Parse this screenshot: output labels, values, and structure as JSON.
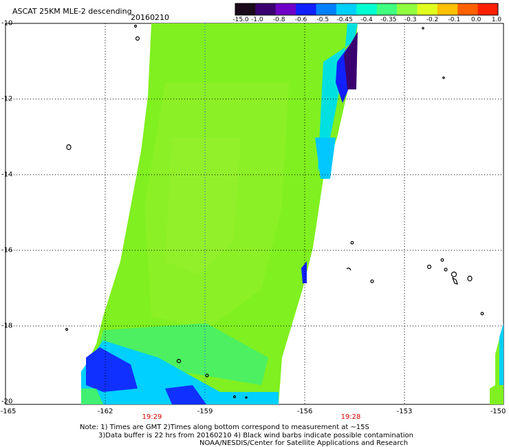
{
  "title": "ASCAT 25KM MLE-2 descending",
  "date": "20160210",
  "colorbar": {
    "labels": [
      "-15.0",
      "-1.0",
      "-0.8",
      "-0.6",
      "-0.5",
      "-0.45",
      "-0.4",
      "-0.35",
      "-0.3",
      "-0.2",
      "-0.1",
      "0.0",
      "1.0"
    ],
    "colors": [
      "#1a0a1a",
      "#3a0070",
      "#7000c8",
      "#1020ff",
      "#0080ff",
      "#00d0ff",
      "#00ffd0",
      "#40ff80",
      "#90ff40",
      "#e0ff20",
      "#ffc000",
      "#ff6000",
      "#ff2000"
    ]
  },
  "axes": {
    "lat_labels": [
      "-10",
      "-12",
      "-14",
      "-16",
      "-18",
      "-20"
    ],
    "lon_labels": [
      "-165",
      "-162",
      "-159",
      "-156",
      "-153",
      "-150"
    ],
    "lat_range": [
      -20,
      -10
    ],
    "lon_range": [
      -165,
      -150
    ]
  },
  "times": [
    "19:29",
    "19:28"
  ],
  "notes": [
    "Note: 1) Times are GMT 2)Times along bottom correspond to measurement at ~15S",
    "3)Data buffer is 22 hrs from 20160210 4) Black wind barbs indicate possible contamination",
    "NOAA/NESDIS/Center for Satellite Applications and Research"
  ]
}
